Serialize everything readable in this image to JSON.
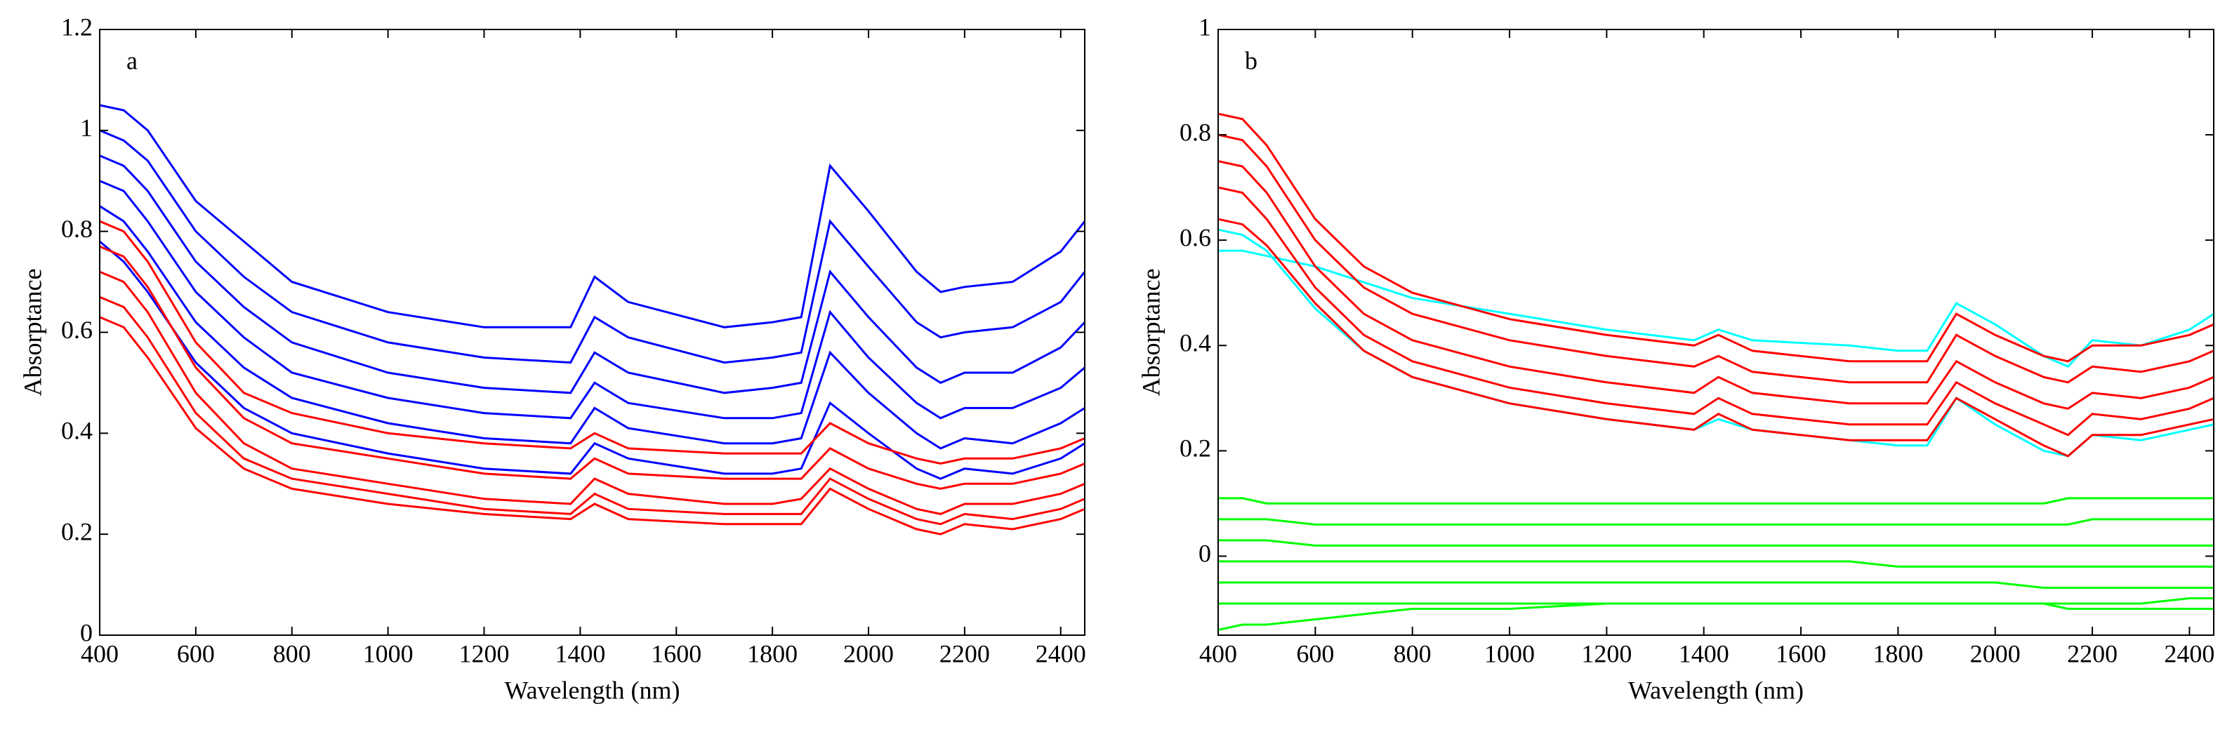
{
  "chart_data": [
    {
      "type": "line",
      "label": "a",
      "xlabel": "Wavelength (nm)",
      "ylabel": "Absorptance",
      "x": [
        400,
        450,
        500,
        600,
        700,
        800,
        1000,
        1200,
        1380,
        1430,
        1500,
        1700,
        1800,
        1860,
        1920,
        2000,
        2100,
        2150,
        2200,
        2300,
        2400,
        2450
      ],
      "xlim": [
        400,
        2450
      ],
      "xticks": [
        400,
        600,
        800,
        1000,
        1200,
        1400,
        1600,
        1800,
        2000,
        2200,
        2400
      ],
      "ylim": [
        0,
        1.2
      ],
      "yticks": [
        0,
        0.2,
        0.4,
        0.6,
        0.8,
        1,
        1.2
      ],
      "series": [
        {
          "color": "#0000ff",
          "values": [
            1.05,
            1.04,
            1.0,
            0.86,
            0.78,
            0.7,
            0.64,
            0.61,
            0.61,
            0.71,
            0.66,
            0.61,
            0.62,
            0.63,
            0.93,
            0.84,
            0.72,
            0.68,
            0.69,
            0.7,
            0.76,
            0.82
          ]
        },
        {
          "color": "#0000ff",
          "values": [
            1.0,
            0.98,
            0.94,
            0.8,
            0.71,
            0.64,
            0.58,
            0.55,
            0.54,
            0.63,
            0.59,
            0.54,
            0.55,
            0.56,
            0.82,
            0.73,
            0.62,
            0.59,
            0.6,
            0.61,
            0.66,
            0.72
          ]
        },
        {
          "color": "#0000ff",
          "values": [
            0.95,
            0.93,
            0.88,
            0.74,
            0.65,
            0.58,
            0.52,
            0.49,
            0.48,
            0.56,
            0.52,
            0.48,
            0.49,
            0.5,
            0.72,
            0.63,
            0.53,
            0.5,
            0.52,
            0.52,
            0.57,
            0.62
          ]
        },
        {
          "color": "#0000ff",
          "values": [
            0.9,
            0.88,
            0.82,
            0.68,
            0.59,
            0.52,
            0.47,
            0.44,
            0.43,
            0.5,
            0.46,
            0.43,
            0.43,
            0.44,
            0.64,
            0.55,
            0.46,
            0.43,
            0.45,
            0.45,
            0.49,
            0.53
          ]
        },
        {
          "color": "#0000ff",
          "values": [
            0.85,
            0.82,
            0.76,
            0.62,
            0.53,
            0.47,
            0.42,
            0.39,
            0.38,
            0.45,
            0.41,
            0.38,
            0.38,
            0.39,
            0.56,
            0.48,
            0.4,
            0.37,
            0.39,
            0.38,
            0.42,
            0.45
          ]
        },
        {
          "color": "#0000ff",
          "values": [
            0.78,
            0.74,
            0.68,
            0.54,
            0.45,
            0.4,
            0.36,
            0.33,
            0.32,
            0.38,
            0.35,
            0.32,
            0.32,
            0.33,
            0.46,
            0.4,
            0.33,
            0.31,
            0.33,
            0.32,
            0.35,
            0.38
          ]
        },
        {
          "color": "#ff0000",
          "values": [
            0.82,
            0.8,
            0.74,
            0.58,
            0.48,
            0.44,
            0.4,
            0.38,
            0.37,
            0.4,
            0.37,
            0.36,
            0.36,
            0.36,
            0.42,
            0.38,
            0.35,
            0.34,
            0.35,
            0.35,
            0.37,
            0.39
          ]
        },
        {
          "color": "#ff0000",
          "values": [
            0.77,
            0.75,
            0.69,
            0.53,
            0.43,
            0.38,
            0.35,
            0.32,
            0.31,
            0.35,
            0.32,
            0.31,
            0.31,
            0.31,
            0.37,
            0.33,
            0.3,
            0.29,
            0.3,
            0.3,
            0.32,
            0.34
          ]
        },
        {
          "color": "#ff0000",
          "values": [
            0.72,
            0.7,
            0.64,
            0.48,
            0.38,
            0.33,
            0.3,
            0.27,
            0.26,
            0.31,
            0.28,
            0.26,
            0.26,
            0.27,
            0.33,
            0.29,
            0.25,
            0.24,
            0.26,
            0.26,
            0.28,
            0.3
          ]
        },
        {
          "color": "#ff0000",
          "values": [
            0.67,
            0.65,
            0.59,
            0.44,
            0.35,
            0.31,
            0.28,
            0.25,
            0.24,
            0.28,
            0.25,
            0.24,
            0.24,
            0.24,
            0.31,
            0.27,
            0.23,
            0.22,
            0.24,
            0.23,
            0.25,
            0.27
          ]
        },
        {
          "color": "#ff0000",
          "values": [
            0.63,
            0.61,
            0.55,
            0.41,
            0.33,
            0.29,
            0.26,
            0.24,
            0.23,
            0.26,
            0.23,
            0.22,
            0.22,
            0.22,
            0.29,
            0.25,
            0.21,
            0.2,
            0.22,
            0.21,
            0.23,
            0.25
          ]
        }
      ]
    },
    {
      "type": "line",
      "label": "b",
      "xlabel": "Wavelength (nm)",
      "ylabel": "Absorptance",
      "x": [
        400,
        450,
        500,
        600,
        700,
        800,
        1000,
        1200,
        1380,
        1430,
        1500,
        1700,
        1800,
        1860,
        1920,
        2000,
        2100,
        2150,
        2200,
        2300,
        2400,
        2450
      ],
      "xlim": [
        400,
        2450
      ],
      "xticks": [
        400,
        600,
        800,
        1000,
        1200,
        1400,
        1600,
        1800,
        2000,
        2200,
        2400
      ],
      "ylim": [
        -0.15,
        1
      ],
      "yticks": [
        0,
        0.2,
        0.4,
        0.6,
        0.8,
        1
      ],
      "series": [
        {
          "color": "#00ff00",
          "values": [
            0.11,
            0.11,
            0.1,
            0.1,
            0.1,
            0.1,
            0.1,
            0.1,
            0.1,
            0.1,
            0.1,
            0.1,
            0.1,
            0.1,
            0.1,
            0.1,
            0.1,
            0.11,
            0.11,
            0.11,
            0.11,
            0.11
          ]
        },
        {
          "color": "#00ff00",
          "values": [
            0.07,
            0.07,
            0.07,
            0.06,
            0.06,
            0.06,
            0.06,
            0.06,
            0.06,
            0.06,
            0.06,
            0.06,
            0.06,
            0.06,
            0.06,
            0.06,
            0.06,
            0.06,
            0.07,
            0.07,
            0.07,
            0.07
          ]
        },
        {
          "color": "#00ff00",
          "values": [
            0.03,
            0.03,
            0.03,
            0.02,
            0.02,
            0.02,
            0.02,
            0.02,
            0.02,
            0.02,
            0.02,
            0.02,
            0.02,
            0.02,
            0.02,
            0.02,
            0.02,
            0.02,
            0.02,
            0.02,
            0.02,
            0.02
          ]
        },
        {
          "color": "#00ff00",
          "values": [
            -0.01,
            -0.01,
            -0.01,
            -0.01,
            -0.01,
            -0.01,
            -0.01,
            -0.01,
            -0.01,
            -0.01,
            -0.01,
            -0.01,
            -0.02,
            -0.02,
            -0.02,
            -0.02,
            -0.02,
            -0.02,
            -0.02,
            -0.02,
            -0.02,
            -0.02
          ]
        },
        {
          "color": "#00ff00",
          "values": [
            -0.05,
            -0.05,
            -0.05,
            -0.05,
            -0.05,
            -0.05,
            -0.05,
            -0.05,
            -0.05,
            -0.05,
            -0.05,
            -0.05,
            -0.05,
            -0.05,
            -0.05,
            -0.05,
            -0.06,
            -0.06,
            -0.06,
            -0.06,
            -0.06,
            -0.06
          ]
        },
        {
          "color": "#00ff00",
          "values": [
            -0.09,
            -0.09,
            -0.09,
            -0.09,
            -0.09,
            -0.09,
            -0.09,
            -0.09,
            -0.09,
            -0.09,
            -0.09,
            -0.09,
            -0.09,
            -0.09,
            -0.09,
            -0.09,
            -0.09,
            -0.1,
            -0.1,
            -0.1,
            -0.1,
            -0.1
          ]
        },
        {
          "color": "#00ff00",
          "values": [
            -0.14,
            -0.13,
            -0.13,
            -0.12,
            -0.11,
            -0.1,
            -0.1,
            -0.09,
            -0.09,
            -0.09,
            -0.09,
            -0.09,
            -0.09,
            -0.09,
            -0.09,
            -0.09,
            -0.09,
            -0.09,
            -0.09,
            -0.09,
            -0.08,
            -0.08
          ]
        },
        {
          "color": "#00ffff",
          "values": [
            0.58,
            0.58,
            0.57,
            0.55,
            0.52,
            0.49,
            0.46,
            0.43,
            0.41,
            0.43,
            0.41,
            0.4,
            0.39,
            0.39,
            0.48,
            0.44,
            0.38,
            0.36,
            0.41,
            0.4,
            0.43,
            0.46
          ]
        },
        {
          "color": "#00ffff",
          "values": [
            0.62,
            0.61,
            0.58,
            0.47,
            0.39,
            0.34,
            0.29,
            0.26,
            0.24,
            0.26,
            0.24,
            0.22,
            0.21,
            0.21,
            0.3,
            0.25,
            0.2,
            0.19,
            0.23,
            0.22,
            0.24,
            0.25
          ]
        },
        {
          "color": "#ff0000",
          "values": [
            0.84,
            0.83,
            0.78,
            0.64,
            0.55,
            0.5,
            0.45,
            0.42,
            0.4,
            0.42,
            0.39,
            0.37,
            0.37,
            0.37,
            0.46,
            0.42,
            0.38,
            0.37,
            0.4,
            0.4,
            0.42,
            0.44
          ]
        },
        {
          "color": "#ff0000",
          "values": [
            0.8,
            0.79,
            0.74,
            0.6,
            0.51,
            0.46,
            0.41,
            0.38,
            0.36,
            0.38,
            0.35,
            0.33,
            0.33,
            0.33,
            0.42,
            0.38,
            0.34,
            0.33,
            0.36,
            0.35,
            0.37,
            0.39
          ]
        },
        {
          "color": "#ff0000",
          "values": [
            0.75,
            0.74,
            0.69,
            0.55,
            0.46,
            0.41,
            0.36,
            0.33,
            0.31,
            0.34,
            0.31,
            0.29,
            0.29,
            0.29,
            0.37,
            0.33,
            0.29,
            0.28,
            0.31,
            0.3,
            0.32,
            0.34
          ]
        },
        {
          "color": "#ff0000",
          "values": [
            0.7,
            0.69,
            0.64,
            0.51,
            0.42,
            0.37,
            0.32,
            0.29,
            0.27,
            0.3,
            0.27,
            0.25,
            0.25,
            0.25,
            0.33,
            0.29,
            0.25,
            0.23,
            0.27,
            0.26,
            0.28,
            0.3
          ]
        },
        {
          "color": "#ff0000",
          "values": [
            0.64,
            0.63,
            0.59,
            0.48,
            0.39,
            0.34,
            0.29,
            0.26,
            0.24,
            0.27,
            0.24,
            0.22,
            0.22,
            0.22,
            0.3,
            0.26,
            0.21,
            0.19,
            0.23,
            0.23,
            0.25,
            0.26
          ]
        }
      ]
    }
  ]
}
